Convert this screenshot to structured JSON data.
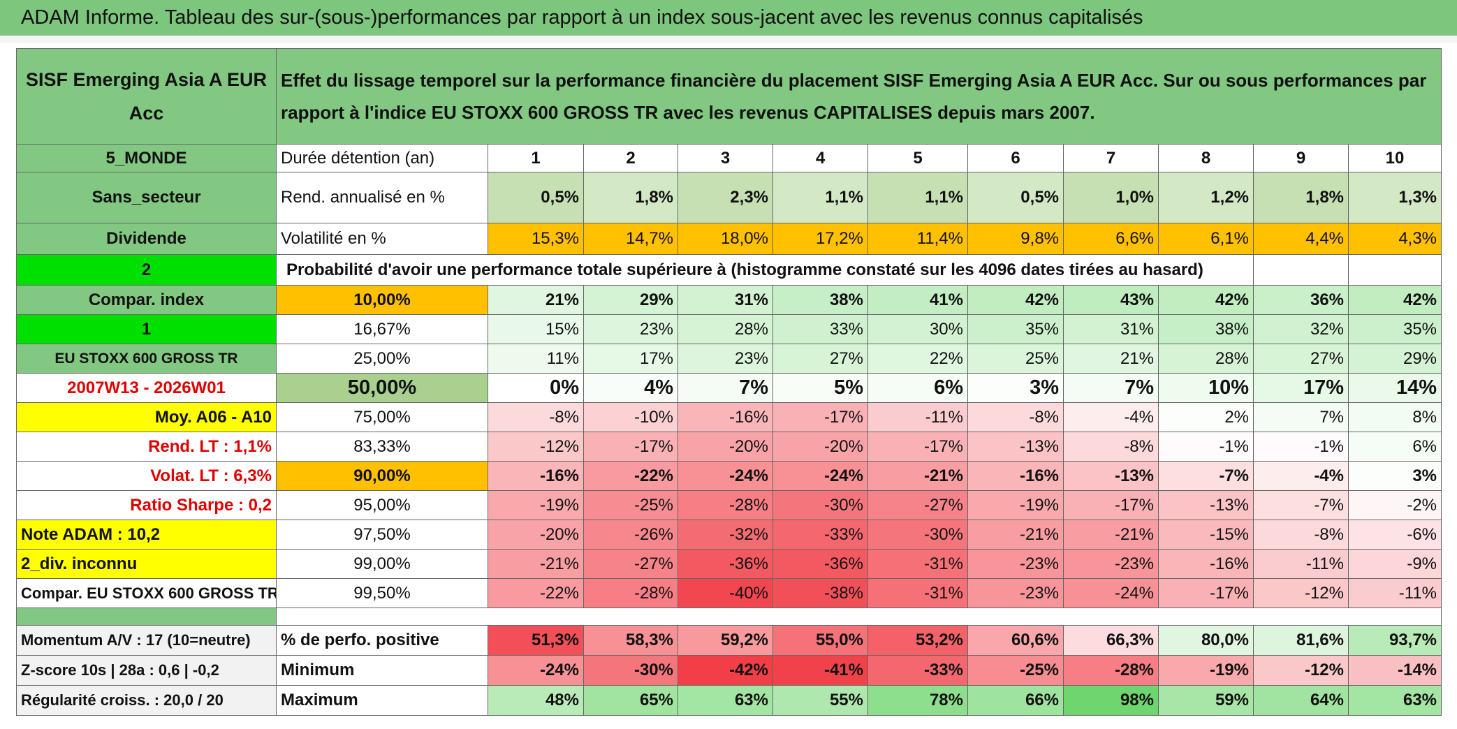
{
  "title": "ADAM Informe. Tableau des sur-(sous-)performances par rapport à un index sous-jacent avec les revenus connus capitalisés",
  "header": {
    "fund": "SISF Emerging Asia A EUR Acc",
    "description": "Effet du lissage temporel sur la performance financière du placement SISF Emerging Asia A EUR Acc. Sur ou sous performances par rapport à l'indice EU STOXX 600 GROSS TR avec les revenus CAPITALISES depuis mars 2007."
  },
  "header_rows": [
    {
      "label": "5_MONDE",
      "name": "Durée détention (an)",
      "cells": [
        "1",
        "2",
        "3",
        "4",
        "5",
        "6",
        "7",
        "8",
        "9",
        "10"
      ]
    },
    {
      "label": "Sans_secteur",
      "name": "Rend. annualisé en %",
      "cells": [
        "0,5%",
        "1,8%",
        "2,3%",
        "1,1%",
        "1,1%",
        "0,5%",
        "1,0%",
        "1,2%",
        "1,8%",
        "1,3%"
      ]
    },
    {
      "label": "Dividende",
      "name": "Volatilité en %",
      "cells": [
        "15,3%",
        "14,7%",
        "18,0%",
        "17,2%",
        "11,4%",
        "9,8%",
        "6,6%",
        "6,1%",
        "4,4%",
        "4,3%"
      ]
    }
  ],
  "probability": {
    "label": "2",
    "text": "Probabilité d'avoir une performance totale supérieure à (histogramme constaté sur les 4096 dates tirées au hasard)"
  },
  "percentile_rows": [
    {
      "label": "Compar. index",
      "name": "10,00%",
      "cells": [
        "21%",
        "29%",
        "31%",
        "38%",
        "41%",
        "42%",
        "43%",
        "42%",
        "36%",
        "42%"
      ]
    },
    {
      "label": "1",
      "name": "16,67%",
      "cells": [
        "15%",
        "23%",
        "28%",
        "33%",
        "30%",
        "35%",
        "31%",
        "38%",
        "32%",
        "35%"
      ]
    },
    {
      "label": "EU STOXX 600 GROSS TR",
      "name": "25,00%",
      "cells": [
        "11%",
        "17%",
        "23%",
        "27%",
        "22%",
        "25%",
        "21%",
        "28%",
        "27%",
        "29%"
      ]
    },
    {
      "label": "2007W13 - 2026W01",
      "name": "50,00%",
      "cells": [
        "0%",
        "4%",
        "7%",
        "5%",
        "6%",
        "3%",
        "7%",
        "10%",
        "17%",
        "14%"
      ]
    },
    {
      "label": "Moy. A06 - A10",
      "name": "75,00%",
      "cells": [
        "-8%",
        "-10%",
        "-16%",
        "-17%",
        "-11%",
        "-8%",
        "-4%",
        "2%",
        "7%",
        "8%"
      ]
    },
    {
      "label": "Rend. LT :   1,1%",
      "name": "83,33%",
      "cells": [
        "-12%",
        "-17%",
        "-20%",
        "-20%",
        "-17%",
        "-13%",
        "-8%",
        "-1%",
        "-1%",
        "6%"
      ]
    },
    {
      "label": "Volat. LT :   6,3%",
      "name": "90,00%",
      "cells": [
        "-16%",
        "-22%",
        "-24%",
        "-24%",
        "-21%",
        "-16%",
        "-13%",
        "-7%",
        "-4%",
        "3%"
      ]
    },
    {
      "label": "Ratio Sharpe :    0,2",
      "name": "95,00%",
      "cells": [
        "-19%",
        "-25%",
        "-28%",
        "-30%",
        "-27%",
        "-19%",
        "-17%",
        "-13%",
        "-7%",
        "-2%"
      ]
    },
    {
      "label": "Note ADAM : 10,2",
      "name": "97,50%",
      "cells": [
        "-20%",
        "-26%",
        "-32%",
        "-33%",
        "-30%",
        "-21%",
        "-21%",
        "-15%",
        "-8%",
        "-6%"
      ]
    },
    {
      "label": "2_div. inconnu",
      "name": "99,00%",
      "cells": [
        "-21%",
        "-27%",
        "-36%",
        "-36%",
        "-31%",
        "-23%",
        "-23%",
        "-16%",
        "-11%",
        "-9%"
      ]
    },
    {
      "label": "Compar. EU STOXX 600 GROSS TR",
      "name": "99,50%",
      "cells": [
        "-22%",
        "-28%",
        "-40%",
        "-38%",
        "-31%",
        "-23%",
        "-24%",
        "-17%",
        "-12%",
        "-11%"
      ]
    }
  ],
  "summary_rows": [
    {
      "label": "Momentum A/V : 17 (10=neutre)",
      "name": "% de perfo. positive",
      "cells": [
        "51,3%",
        "58,3%",
        "59,2%",
        "55,0%",
        "53,2%",
        "60,6%",
        "66,3%",
        "80,0%",
        "81,6%",
        "93,7%"
      ]
    },
    {
      "label": "Z-score 10s | 28a : 0,6 | -0,2",
      "name": "Minimum",
      "cells": [
        "-24%",
        "-30%",
        "-42%",
        "-41%",
        "-33%",
        "-25%",
        "-28%",
        "-19%",
        "-12%",
        "-14%"
      ]
    },
    {
      "label": "Régularité croiss. : 20,0 / 20",
      "name": "Maximum",
      "cells": [
        "48%",
        "65%",
        "63%",
        "55%",
        "78%",
        "66%",
        "98%",
        "59%",
        "64%",
        "63%"
      ]
    }
  ]
}
